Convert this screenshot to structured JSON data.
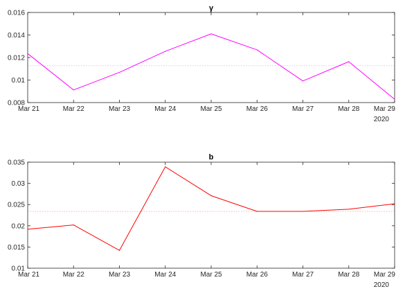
{
  "chart_data": [
    {
      "type": "line",
      "title": "γ",
      "categories": [
        "Mar 21",
        "Mar 22",
        "Mar 23",
        "Mar 24",
        "Mar 25",
        "Mar 26",
        "Mar 27",
        "Mar 28",
        "Mar 29"
      ],
      "x_year_label": "2020",
      "ylim": [
        0.008,
        0.016
      ],
      "yticks": [
        0.008,
        0.01,
        0.012,
        0.014,
        0.016
      ],
      "ytick_labels": [
        "0.008",
        "0.01",
        "0.012",
        "0.014",
        "0.016"
      ],
      "series": [
        {
          "values": [
            0.01235,
            0.00912,
            0.01068,
            0.01255,
            0.0141,
            0.01268,
            0.00992,
            0.01163,
            0.00829
          ],
          "color": "#ff00ff"
        }
      ],
      "reference_line": {
        "value": 0.01127,
        "style": "dotted",
        "color": "#ff00ff"
      },
      "grid": false,
      "legend": "none"
    },
    {
      "type": "line",
      "title": "b",
      "categories": [
        "Mar 21",
        "Mar 22",
        "Mar 23",
        "Mar 24",
        "Mar 25",
        "Mar 26",
        "Mar 27",
        "Mar 28",
        "Mar 29"
      ],
      "x_year_label": "2020",
      "ylim": [
        0.01,
        0.035
      ],
      "yticks": [
        0.01,
        0.015,
        0.02,
        0.025,
        0.03,
        0.035
      ],
      "ytick_labels": [
        "0.01",
        "0.015",
        "0.02",
        "0.025",
        "0.03",
        "0.035"
      ],
      "series": [
        {
          "values": [
            0.0192,
            0.0202,
            0.0142,
            0.0339,
            0.0271,
            0.0234,
            0.0234,
            0.0239,
            0.0252
          ],
          "color": "#ff0000"
        }
      ],
      "reference_line": {
        "value": 0.0234,
        "style": "dotted",
        "color": "#ff0000"
      },
      "grid": false,
      "legend": "none"
    }
  ]
}
